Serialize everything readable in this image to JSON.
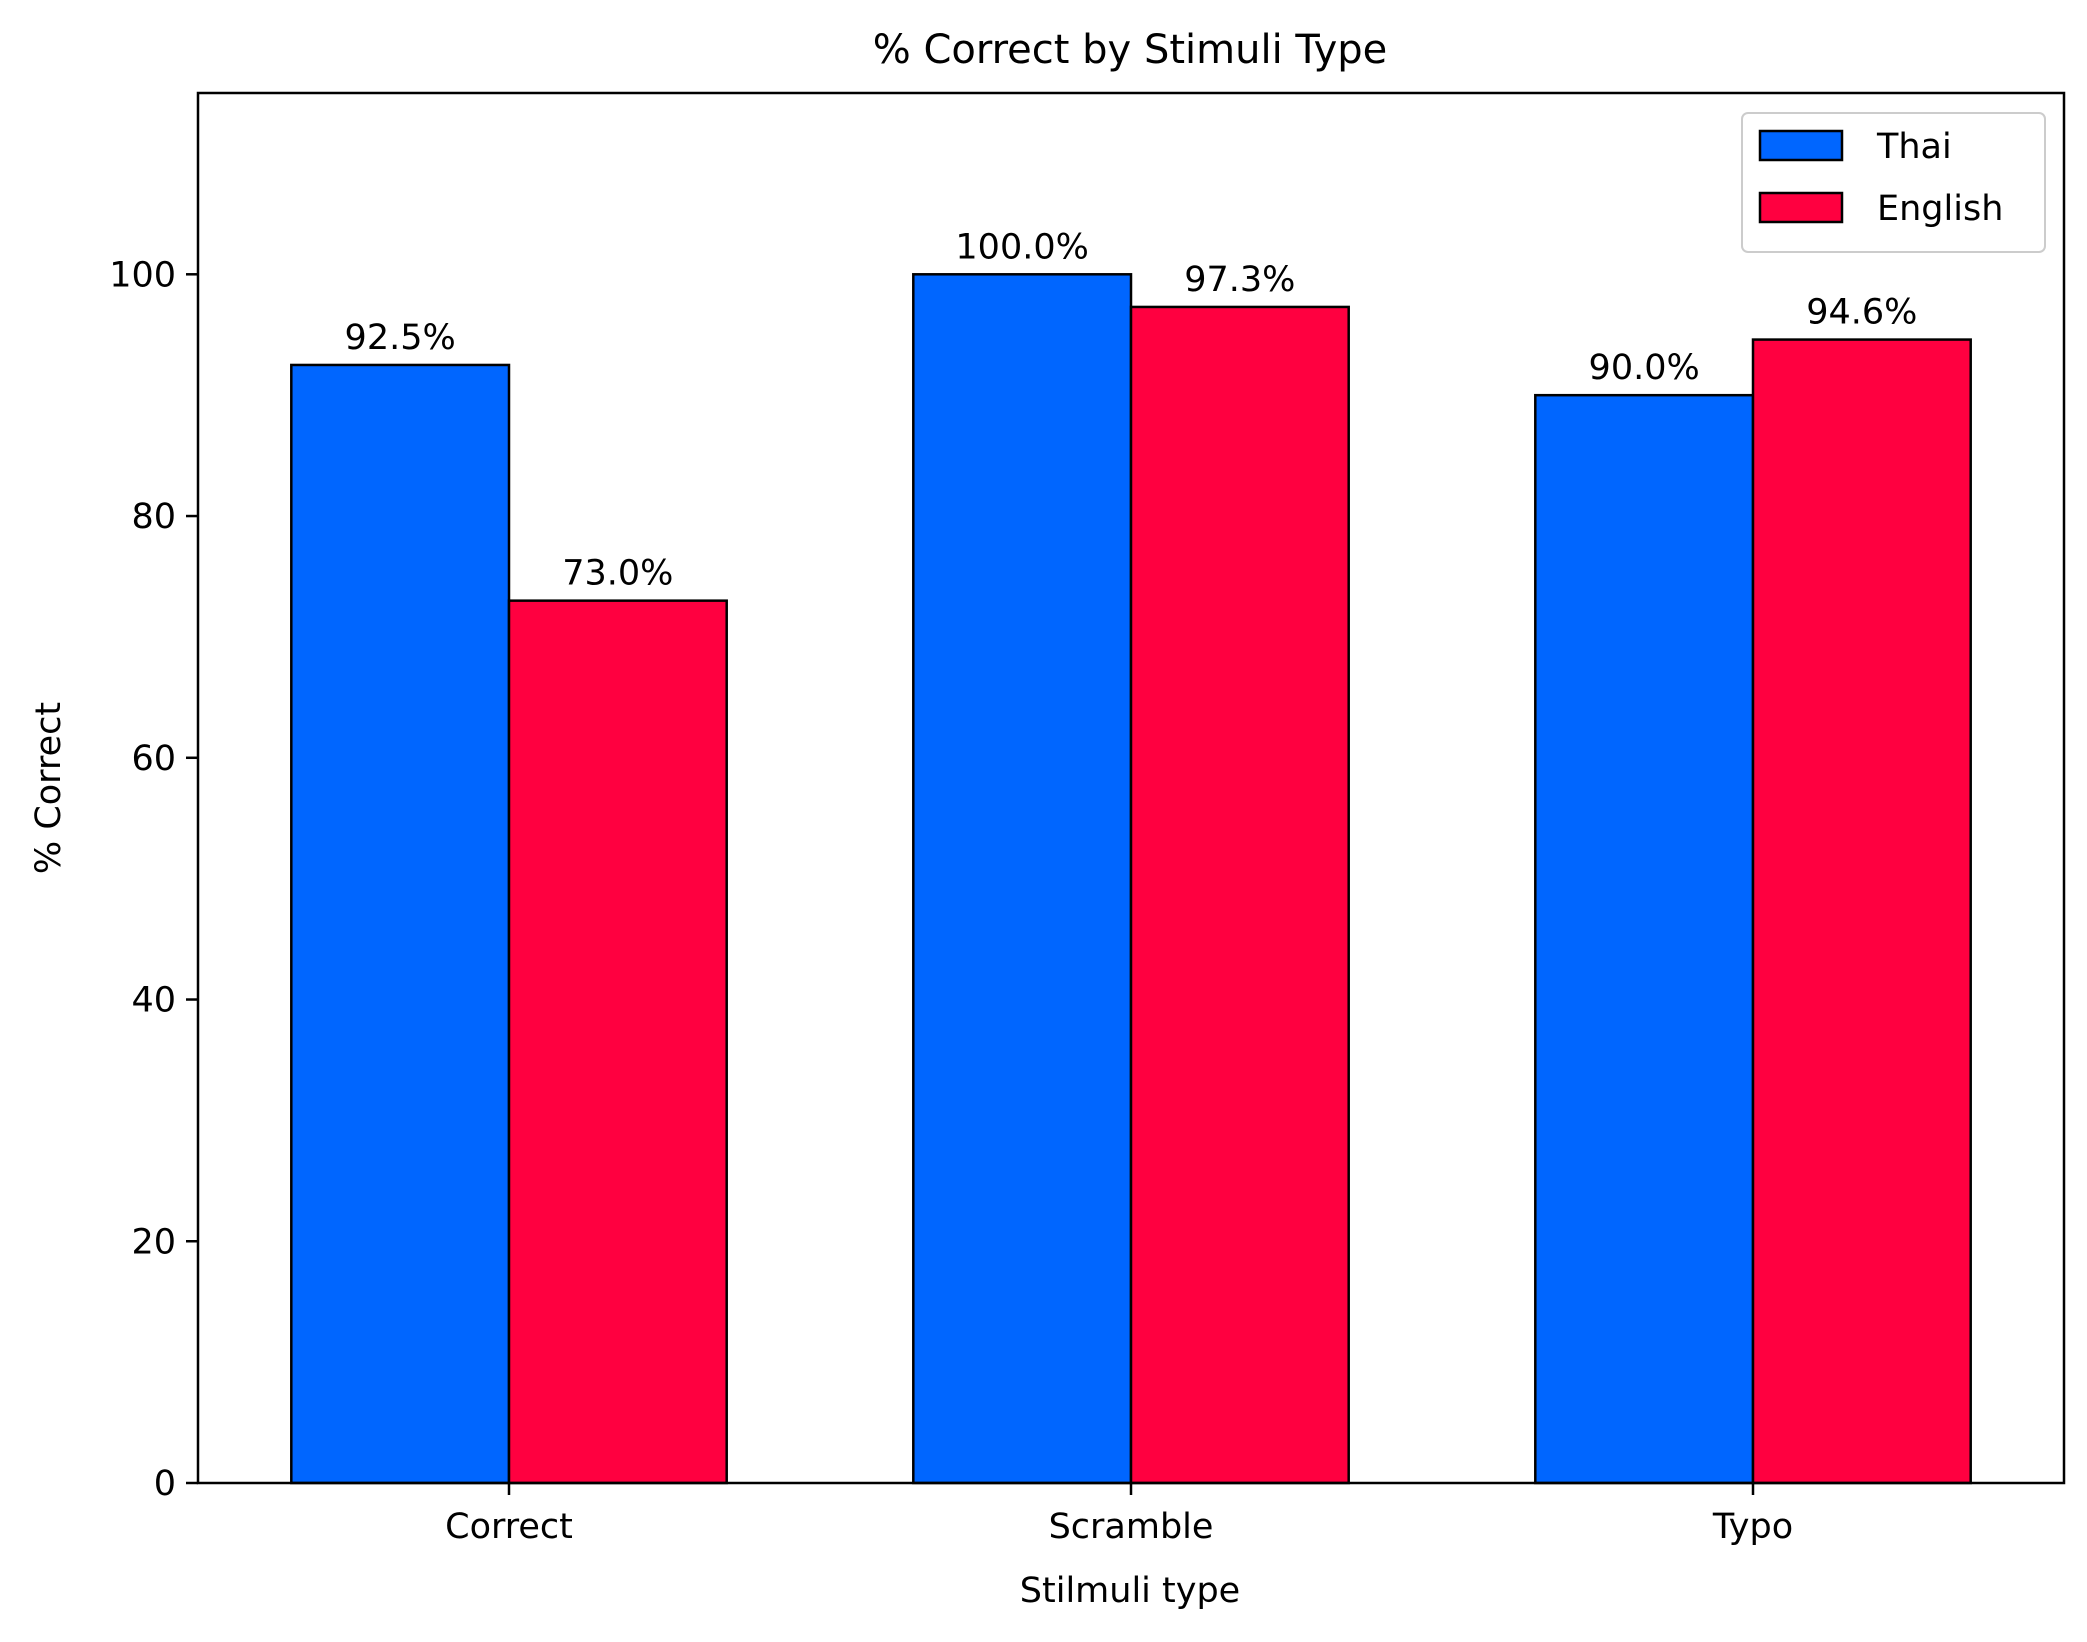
{
  "chart_data": {
    "type": "bar",
    "title": "% Correct by Stimuli Type",
    "xlabel": "Stilmuli type",
    "ylabel": "% Correct",
    "categories": [
      "Correct",
      "Scramble",
      "Typo"
    ],
    "series": [
      {
        "name": "Thai",
        "values": [
          92.5,
          100.0,
          90.0
        ],
        "color": "#0066ff"
      },
      {
        "name": "English",
        "values": [
          73.0,
          97.3,
          94.6
        ],
        "color": "#ff0040"
      }
    ],
    "data_labels": [
      [
        "92.5%",
        "100.0%",
        "90.0%"
      ],
      [
        "73.0%",
        "97.3%",
        "94.6%"
      ]
    ],
    "yticks": [
      0,
      20,
      40,
      60,
      80,
      100
    ],
    "ylim": [
      0,
      115
    ],
    "legend_position": "top-right",
    "grid": false
  }
}
